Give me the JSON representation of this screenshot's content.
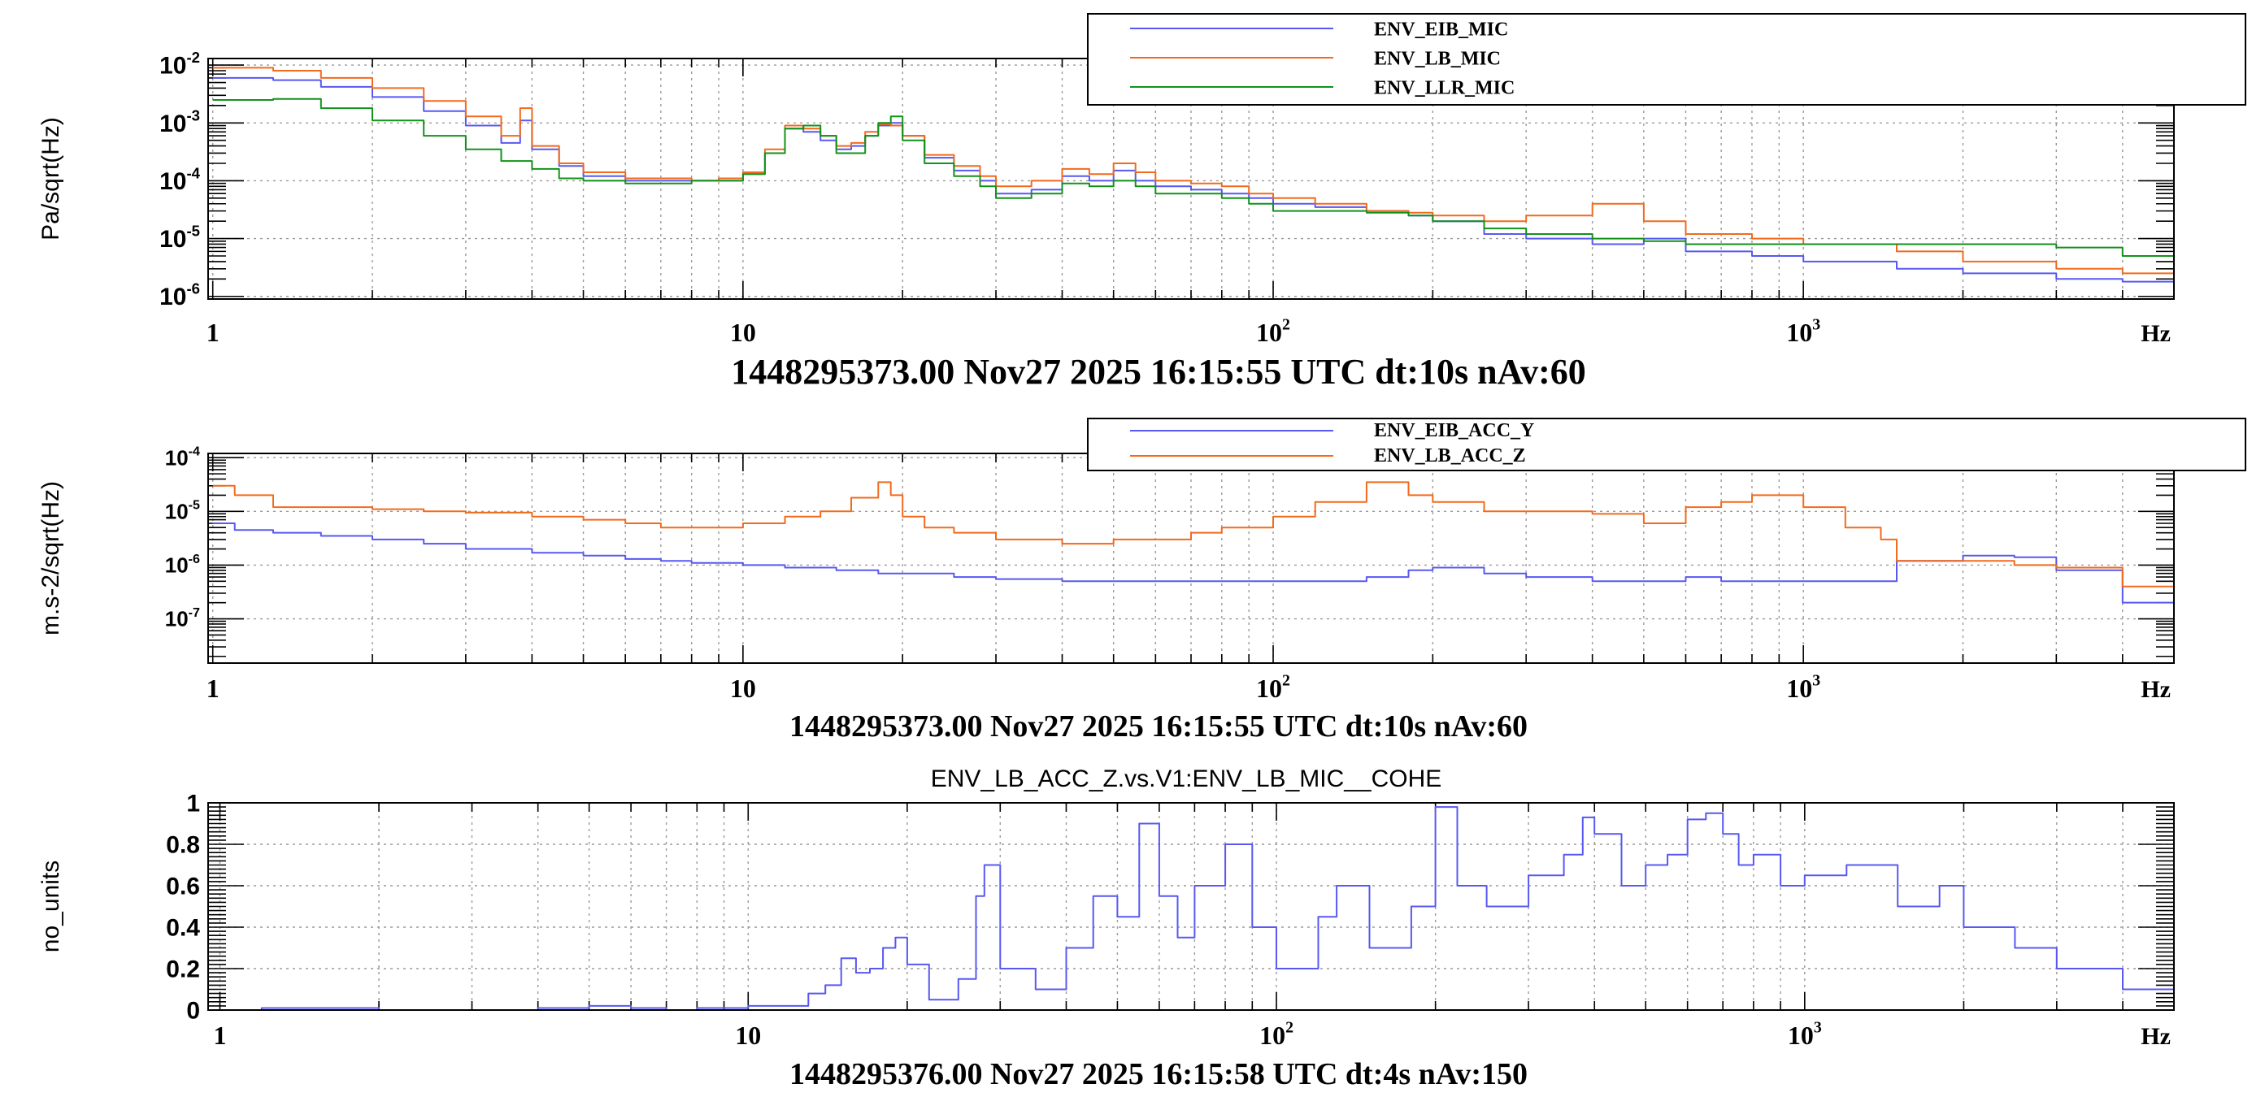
{
  "colors": {
    "blue": "#5858f2",
    "orange": "#f26a1c",
    "green": "#12921a"
  },
  "chart_data": [
    {
      "type": "line",
      "title": "",
      "subtitle": "1448295373.00 Nov27 2025 16:15:55 UTC dt:10s nAv:60",
      "xlabel": "Hz",
      "ylabel": "Pa/sqrt(Hz)",
      "xscale": "log",
      "yscale": "log",
      "xlim": [
        0.98,
        5000
      ],
      "ylim": [
        9e-07,
        0.013
      ],
      "x_tick_labels": [
        "1",
        "10",
        "10^2",
        "10^3"
      ],
      "y_tick_labels": [
        "10^-6",
        "10^-5",
        "10^-4",
        "10^-3",
        "10^-2"
      ],
      "grid": true,
      "legend_position": "top-right",
      "series": [
        {
          "name": "ENV_EIB_MIC",
          "color": "#5858f2",
          "x": [
            1,
            1.3,
            1.6,
            2,
            2.5,
            3,
            3.5,
            3.8,
            4,
            4.5,
            5,
            6,
            7,
            8,
            9,
            10,
            11,
            12,
            13,
            14,
            15,
            16,
            17,
            18,
            19,
            20,
            22,
            25,
            28,
            30,
            35,
            40,
            45,
            50,
            55,
            60,
            70,
            80,
            90,
            100,
            120,
            150,
            180,
            200,
            250,
            300,
            400,
            500,
            600,
            800,
            1000,
            1500,
            2000,
            3000,
            4000,
            5000
          ],
          "y": [
            0.006,
            0.0055,
            0.0042,
            0.0028,
            0.0016,
            0.0009,
            0.00045,
            0.0011,
            0.00035,
            0.00018,
            0.00012,
            0.0001,
            0.0001,
            0.0001,
            0.0001,
            0.00013,
            0.0003,
            0.0008,
            0.0007,
            0.0005,
            0.00035,
            0.0004,
            0.0006,
            0.0009,
            0.001,
            0.0006,
            0.00025,
            0.00015,
            0.0001,
            6e-05,
            7e-05,
            0.00012,
            0.0001,
            0.00015,
            0.0001,
            8e-05,
            7e-05,
            6e-05,
            5e-05,
            4e-05,
            3.5e-05,
            3e-05,
            2.5e-05,
            2e-05,
            1.2e-05,
            1e-05,
            8e-06,
            1e-05,
            6e-06,
            5e-06,
            4e-06,
            3e-06,
            2.5e-06,
            2e-06,
            1.8e-06,
            1.5e-06
          ]
        },
        {
          "name": "ENV_LB_MIC",
          "color": "#f26a1c",
          "x": [
            1,
            1.3,
            1.6,
            2,
            2.5,
            3,
            3.5,
            3.8,
            4,
            4.5,
            5,
            6,
            7,
            8,
            9,
            10,
            11,
            12,
            13,
            14,
            15,
            16,
            17,
            18,
            19,
            20,
            22,
            25,
            28,
            30,
            35,
            40,
            45,
            50,
            55,
            60,
            70,
            80,
            90,
            100,
            120,
            150,
            180,
            200,
            250,
            300,
            400,
            500,
            600,
            800,
            1000,
            1500,
            2000,
            3000,
            4000,
            5000
          ],
          "y": [
            0.009,
            0.008,
            0.006,
            0.004,
            0.0024,
            0.0013,
            0.0006,
            0.0018,
            0.0004,
            0.0002,
            0.00014,
            0.00011,
            0.00011,
            0.0001,
            0.00011,
            0.00014,
            0.00035,
            0.0009,
            0.0008,
            0.0006,
            0.0004,
            0.00045,
            0.0007,
            0.00095,
            0.0009,
            0.0006,
            0.00028,
            0.00018,
            0.00012,
            8e-05,
            0.0001,
            0.00016,
            0.00013,
            0.0002,
            0.00014,
            0.0001,
            9e-05,
            8e-05,
            6e-05,
            5e-05,
            4e-05,
            3e-05,
            2.8e-05,
            2.5e-05,
            2e-05,
            2.5e-05,
            4e-05,
            2e-05,
            1.2e-05,
            1e-05,
            8e-06,
            6e-06,
            4e-06,
            3e-06,
            2.5e-06,
            2e-06
          ]
        },
        {
          "name": "ENV_LLR_MIC",
          "color": "#12921a",
          "x": [
            1,
            1.3,
            1.6,
            2,
            2.5,
            3,
            3.5,
            4,
            4.5,
            5,
            6,
            7,
            8,
            9,
            10,
            11,
            12,
            13,
            14,
            15,
            16,
            17,
            18,
            19,
            20,
            22,
            25,
            28,
            30,
            35,
            40,
            45,
            50,
            55,
            60,
            70,
            80,
            90,
            100,
            120,
            150,
            180,
            200,
            250,
            300,
            400,
            500,
            600,
            800,
            1000,
            1500,
            2000,
            3000,
            4000,
            5000
          ],
          "y": [
            0.0025,
            0.0026,
            0.0018,
            0.0011,
            0.0006,
            0.00035,
            0.00022,
            0.00016,
            0.00011,
            0.0001,
            9e-05,
            9e-05,
            0.0001,
            0.0001,
            0.00013,
            0.0003,
            0.0008,
            0.0009,
            0.0006,
            0.0003,
            0.0003,
            0.0006,
            0.001,
            0.0013,
            0.0005,
            0.0002,
            0.00012,
            8e-05,
            5e-05,
            6e-05,
            9e-05,
            8e-05,
            0.0001,
            8e-05,
            6e-05,
            6e-05,
            5e-05,
            4e-05,
            3e-05,
            3e-05,
            2.8e-05,
            2.5e-05,
            2e-05,
            1.5e-05,
            1.2e-05,
            1e-05,
            9e-06,
            8e-06,
            8e-06,
            8e-06,
            8e-06,
            8e-06,
            7e-06,
            5e-06,
            4e-06
          ]
        }
      ]
    },
    {
      "type": "line",
      "title": "",
      "subtitle": "1448295373.00 Nov27 2025 16:15:55 UTC dt:10s nAv:60",
      "xlabel": "Hz",
      "ylabel": "m.s-2/sqrt(Hz)",
      "xscale": "log",
      "yscale": "log",
      "xlim": [
        0.98,
        5000
      ],
      "ylim": [
        1.5e-08,
        0.00012
      ],
      "x_tick_labels": [
        "1",
        "10",
        "10^2",
        "10^3"
      ],
      "y_tick_labels": [
        "10^-7",
        "10^-6",
        "10^-5",
        "10^-4"
      ],
      "grid": true,
      "legend_position": "top-right",
      "series": [
        {
          "name": "ENV_EIB_ACC_Y",
          "color": "#5858f2",
          "x": [
            1,
            1.1,
            1.3,
            1.6,
            2,
            2.5,
            3,
            4,
            5,
            6,
            7,
            8,
            10,
            12,
            15,
            18,
            20,
            25,
            30,
            40,
            50,
            60,
            70,
            80,
            100,
            120,
            150,
            180,
            200,
            250,
            300,
            400,
            500,
            600,
            700,
            800,
            1000,
            1400,
            1500,
            2000,
            2500,
            3000,
            4000,
            5000
          ],
          "y": [
            6e-06,
            4.5e-06,
            4e-06,
            3.5e-06,
            3e-06,
            2.5e-06,
            2e-06,
            1.7e-06,
            1.5e-06,
            1.3e-06,
            1.2e-06,
            1.1e-06,
            1e-06,
            9e-07,
            8e-07,
            7e-07,
            7e-07,
            6e-07,
            5.5e-07,
            5e-07,
            5e-07,
            5e-07,
            5e-07,
            5e-07,
            5e-07,
            5e-07,
            6e-07,
            8e-07,
            9e-07,
            7e-07,
            6e-07,
            5e-07,
            5e-07,
            6e-07,
            5e-07,
            5e-07,
            5e-07,
            5e-07,
            1.2e-06,
            1.5e-06,
            1.4e-06,
            8e-07,
            2e-07,
            4e-08
          ]
        },
        {
          "name": "ENV_LB_ACC_Z",
          "color": "#f26a1c",
          "x": [
            1,
            1.1,
            1.3,
            1.6,
            2,
            2.5,
            3,
            4,
            5,
            6,
            7,
            8,
            10,
            12,
            14,
            16,
            18,
            19,
            20,
            22,
            25,
            30,
            40,
            50,
            60,
            70,
            80,
            100,
            120,
            150,
            180,
            200,
            250,
            300,
            400,
            500,
            600,
            700,
            800,
            900,
            1000,
            1200,
            1400,
            1500,
            2000,
            2500,
            3000,
            4000,
            5000
          ],
          "y": [
            3e-05,
            2e-05,
            1.2e-05,
            1.2e-05,
            1.1e-05,
            1e-05,
            9.5e-06,
            8e-06,
            7e-06,
            6e-06,
            5e-06,
            5e-06,
            6e-06,
            8e-06,
            1e-05,
            1.8e-05,
            3.5e-05,
            2e-05,
            8e-06,
            5e-06,
            4e-06,
            3e-06,
            2.5e-06,
            3e-06,
            3e-06,
            4e-06,
            5e-06,
            8e-06,
            1.5e-05,
            3.5e-05,
            2e-05,
            1.5e-05,
            1e-05,
            1e-05,
            9e-06,
            6e-06,
            1.2e-05,
            1.5e-05,
            2e-05,
            2e-05,
            1.2e-05,
            5e-06,
            3e-06,
            1.2e-06,
            1.2e-06,
            1e-06,
            9e-07,
            4e-07,
            9e-08
          ]
        }
      ]
    },
    {
      "type": "line",
      "title": "ENV_LB_ACC_Z.vs.V1:ENV_LB_MIC__COHE",
      "subtitle": "1448295376.00 Nov27 2025 16:15:58 UTC dt:4s nAv:150",
      "xlabel": "Hz",
      "ylabel": "no_units",
      "xscale": "log",
      "yscale": "linear",
      "xlim": [
        0.95,
        5000
      ],
      "ylim": [
        0,
        1
      ],
      "x_tick_labels": [
        "1",
        "10",
        "10^2",
        "10^3"
      ],
      "y_tick_labels": [
        "0",
        "0.2",
        "0.4",
        "0.6",
        "0.8",
        "1"
      ],
      "grid": true,
      "series": [
        {
          "name": "",
          "color": "#5858f2",
          "x": [
            1,
            1.2,
            1.5,
            1.8,
            2,
            3,
            4,
            5,
            6,
            7,
            8,
            10,
            12,
            13,
            14,
            15,
            16,
            17,
            18,
            19,
            20,
            22,
            25,
            27,
            28,
            30,
            35,
            40,
            45,
            50,
            55,
            60,
            65,
            70,
            80,
            90,
            100,
            120,
            130,
            150,
            180,
            200,
            220,
            250,
            300,
            350,
            380,
            400,
            450,
            500,
            550,
            600,
            650,
            700,
            750,
            800,
            900,
            1000,
            1200,
            1500,
            1800,
            2000,
            2500,
            3000,
            4000,
            5000
          ],
          "y": [
            0,
            0.01,
            0.01,
            0.01,
            0,
            0,
            0.01,
            0.02,
            0.01,
            0,
            0.01,
            0.02,
            0.02,
            0.08,
            0.12,
            0.25,
            0.18,
            0.2,
            0.3,
            0.35,
            0.22,
            0.05,
            0.15,
            0.55,
            0.7,
            0.2,
            0.1,
            0.3,
            0.55,
            0.45,
            0.9,
            0.55,
            0.35,
            0.6,
            0.8,
            0.4,
            0.2,
            0.45,
            0.6,
            0.3,
            0.5,
            0.98,
            0.6,
            0.5,
            0.65,
            0.75,
            0.93,
            0.85,
            0.6,
            0.7,
            0.75,
            0.92,
            0.95,
            0.85,
            0.7,
            0.75,
            0.6,
            0.65,
            0.7,
            0.5,
            0.6,
            0.4,
            0.3,
            0.2,
            0.1,
            0.05
          ]
        }
      ]
    }
  ]
}
